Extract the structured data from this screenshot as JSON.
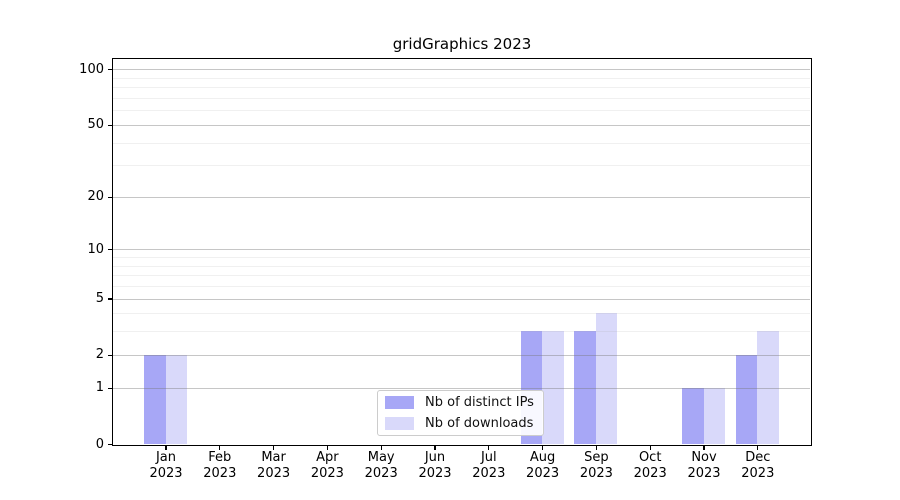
{
  "title": "gridGraphics 2023",
  "chart_data": {
    "type": "bar",
    "title": "gridGraphics 2023",
    "categories": [
      "Jan 2023",
      "Feb 2023",
      "Mar 2023",
      "Apr 2023",
      "May 2023",
      "Jun 2023",
      "Jul 2023",
      "Aug 2023",
      "Sep 2023",
      "Oct 2023",
      "Nov 2023",
      "Dec 2023"
    ],
    "series": [
      {
        "name": "Nb of distinct IPs",
        "color": "#a7a7f6",
        "values": [
          2,
          0,
          0,
          0,
          0,
          0,
          0,
          3,
          3,
          0,
          1,
          2
        ]
      },
      {
        "name": "Nb of downloads",
        "color": "#d9d9fa",
        "values": [
          2,
          0,
          0,
          0,
          0,
          0,
          0,
          3,
          4,
          0,
          1,
          3
        ]
      }
    ],
    "xlabel": "",
    "ylabel": "",
    "yscale": "log1p",
    "ylim": [
      0,
      116
    ],
    "y_major_ticks": [
      0,
      1,
      2,
      5,
      10,
      20,
      50,
      100
    ],
    "y_minor_gridlines": [
      3,
      4,
      6,
      7,
      8,
      9,
      30,
      40,
      60,
      70,
      80,
      90
    ],
    "grid": "horizontal",
    "legend_position": "lower center",
    "colors": {
      "axis": "#000000",
      "major_grid": "#c9c9c9",
      "minor_grid": "#ececec",
      "background": "#ffffff"
    }
  }
}
